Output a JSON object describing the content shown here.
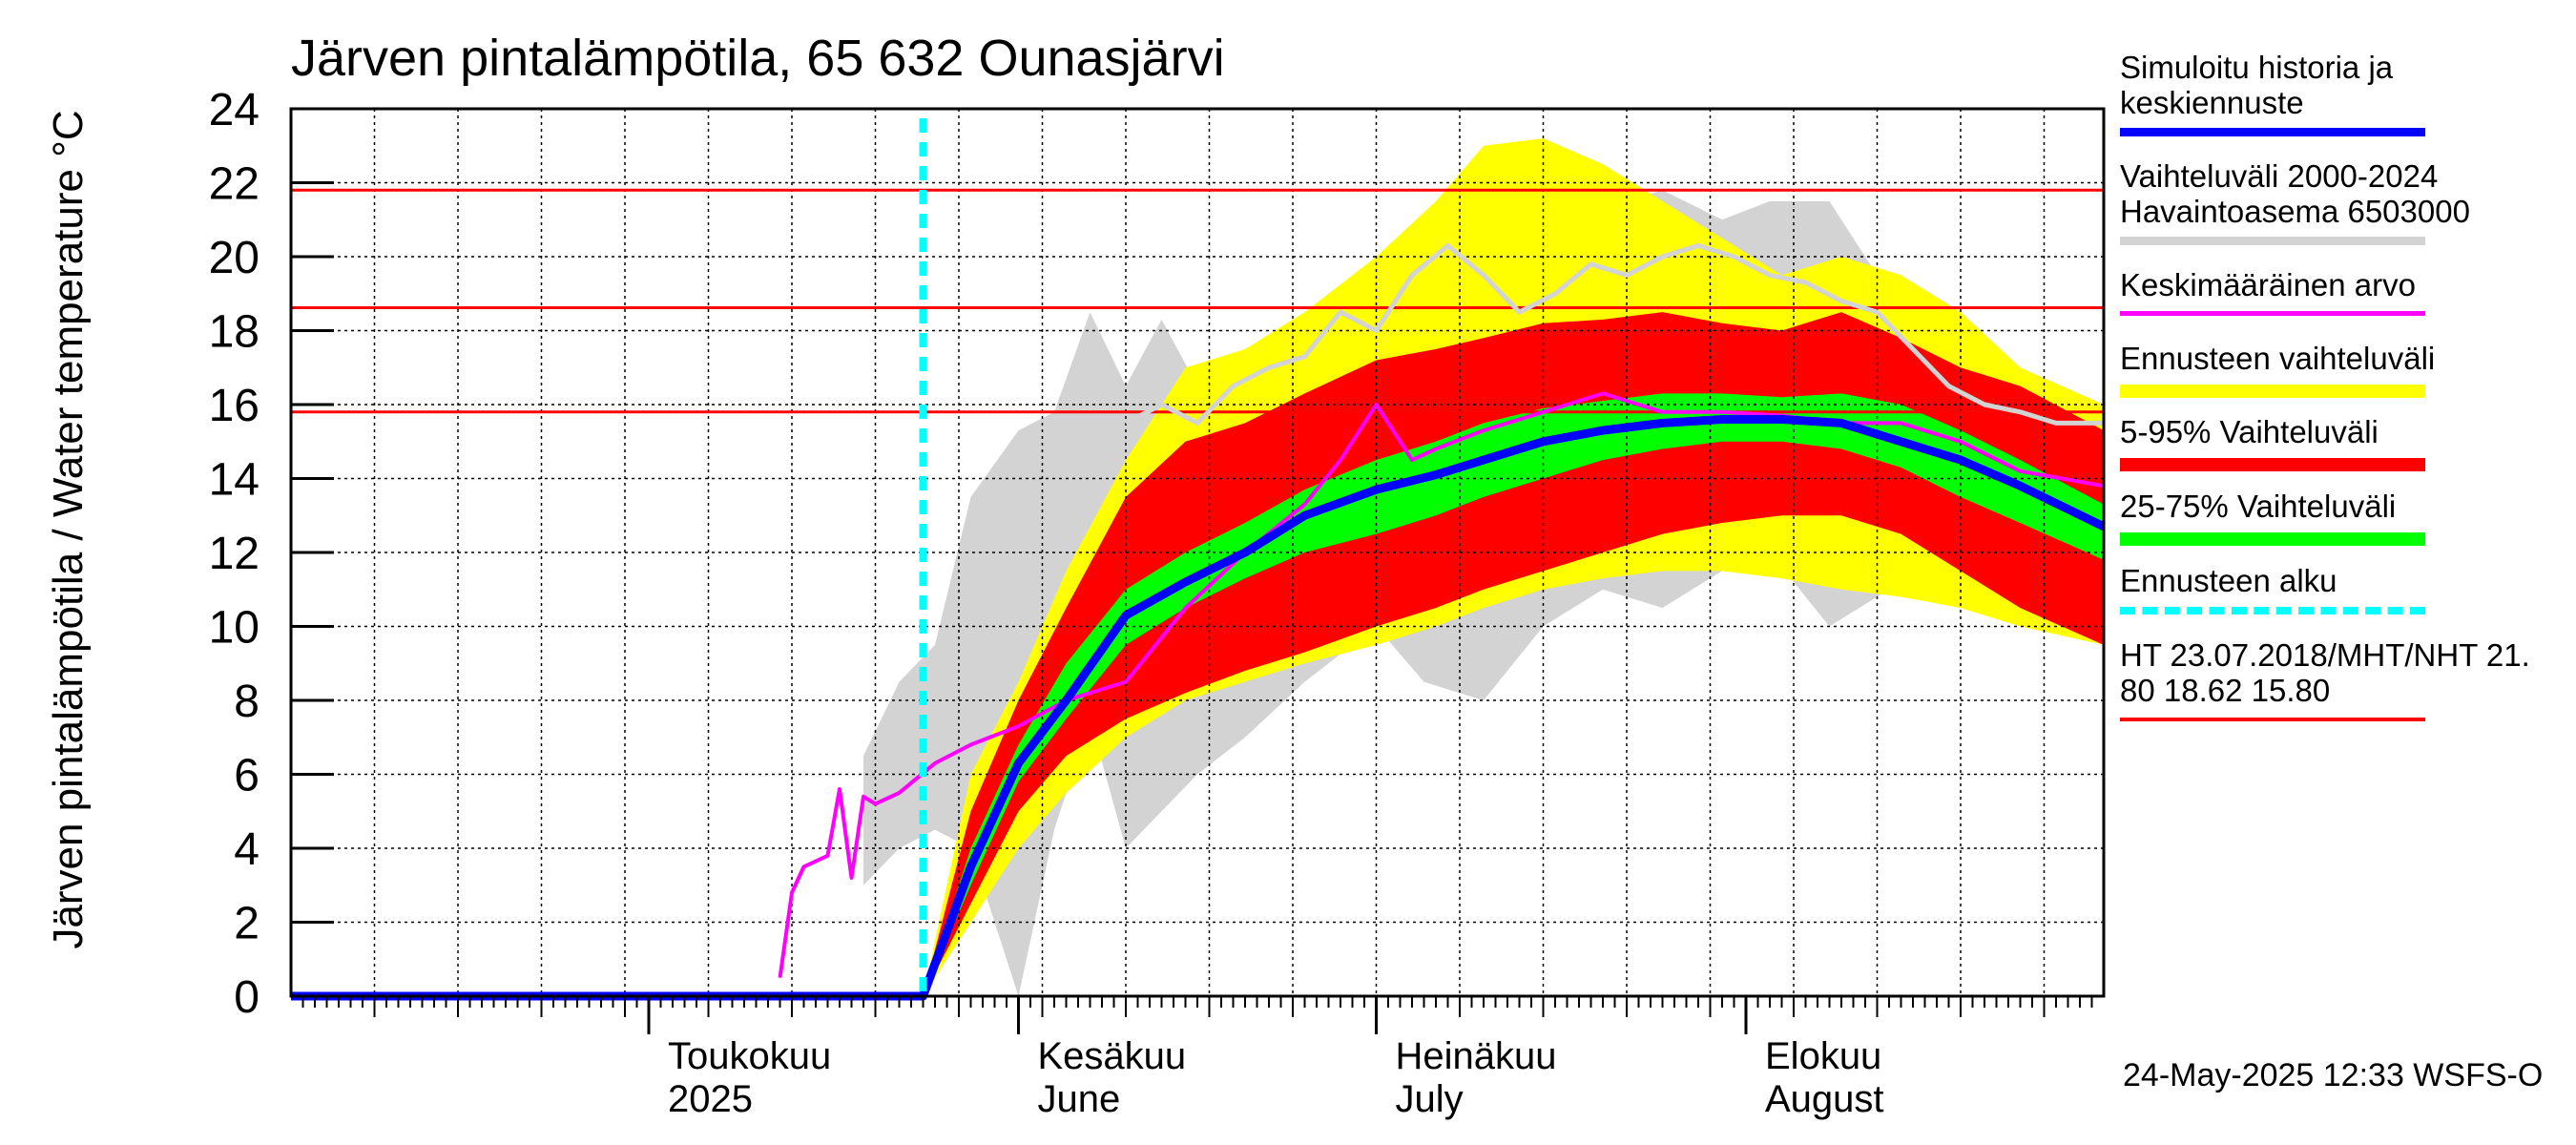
{
  "title": "Järven pintalämpötila, 65 632 Ounasjärvi",
  "y_axis_label": "Järven pintalämpötila / Water temperature °C",
  "footer": "24-May-2025 12:33 WSFS-O",
  "colors": {
    "background": "#ffffff",
    "grid": "#000000",
    "simulated": "#0000ff",
    "history_range": "#d3d3d3",
    "history_obs": "#d3d3d3",
    "mean": "#ff00ff",
    "forecast_range": "#ffff00",
    "p5_95": "#ff0000",
    "p25_75": "#00ff00",
    "forecast_start": "#00ffff",
    "reference_lines": "#ff0000"
  },
  "legend": [
    {
      "label": "Simuloitu historia ja\nkeskiennuste",
      "color": "#0000ff",
      "style": "solid"
    },
    {
      "label": "Vaihteluväli 2000-2024\n Havaintoasema 6503000",
      "color": "#d3d3d3",
      "style": "solid"
    },
    {
      "label": "Keskimääräinen arvo",
      "color": "#ff00ff",
      "style": "solid"
    },
    {
      "label": "Ennusteen vaihteluväli",
      "color": "#ffff00",
      "style": "solid"
    },
    {
      "label": "5-95% Vaihteluväli",
      "color": "#ff0000",
      "style": "solid"
    },
    {
      "label": "25-75% Vaihteluväli",
      "color": "#00ff00",
      "style": "solid"
    },
    {
      "label": "Ennusteen alku",
      "color": "#00ffff",
      "style": "dashed"
    },
    {
      "label": "HT 23.07.2018/MHT/NHT 21.\n80 18.62 15.80",
      "color": "#ff0000",
      "style": "solid"
    }
  ],
  "chart_data": {
    "type": "area",
    "x_start": "2025-04-01",
    "x_end": "2025-08-31",
    "ylim": [
      0,
      24
    ],
    "grid": true,
    "legend_position": "right",
    "y_ticks": [
      0,
      2,
      4,
      6,
      8,
      10,
      12,
      14,
      16,
      18,
      20,
      22,
      24
    ],
    "month_labels": [
      {
        "fi": "Toukokuu",
        "en": "2025",
        "date": "2025-05-01"
      },
      {
        "fi": "Kesäkuu",
        "en": "June",
        "date": "2025-06-01"
      },
      {
        "fi": "Heinäkuu",
        "en": "July",
        "date": "2025-07-01"
      },
      {
        "fi": "Elokuu",
        "en": "August",
        "date": "2025-08-01"
      }
    ],
    "forecast_start": "2025-05-24",
    "reference_lines": [
      {
        "name": "HT",
        "value": 21.8
      },
      {
        "name": "MHT",
        "value": 18.62
      },
      {
        "name": "NHT",
        "value": 15.8
      }
    ],
    "history_range": {
      "name": "Vaihteluväli 2000-2024",
      "dates": [
        "2025-05-19",
        "2025-05-22",
        "2025-05-25",
        "2025-05-28",
        "2025-06-01",
        "2025-06-04",
        "2025-06-07",
        "2025-06-10",
        "2025-06-13",
        "2025-06-16",
        "2025-06-20",
        "2025-06-25",
        "2025-07-01",
        "2025-07-05",
        "2025-07-10",
        "2025-07-15",
        "2025-07-20",
        "2025-07-25",
        "2025-07-30",
        "2025-08-03",
        "2025-08-08",
        "2025-08-13",
        "2025-08-18",
        "2025-08-24",
        "2025-08-31"
      ],
      "upper": [
        6.5,
        8.5,
        9.5,
        13.5,
        15.3,
        15.8,
        18.5,
        16.5,
        18.3,
        16.5,
        16.0,
        17.5,
        18.5,
        19.5,
        20.5,
        20.8,
        21.3,
        21.8,
        21.0,
        21.5,
        21.5,
        19.0,
        18.5,
        16.5,
        15.8
      ],
      "lower": [
        3.0,
        4.0,
        4.5,
        4.0,
        0.0,
        4.5,
        7.5,
        4.0,
        5.0,
        6.0,
        7.0,
        8.5,
        10.0,
        8.5,
        8.0,
        10.0,
        11.0,
        10.5,
        11.5,
        12.0,
        10.0,
        11.0,
        11.5,
        11.0,
        10.5
      ]
    },
    "history_observed": {
      "name": "Havaintoasema 6503000",
      "dates": [
        "2025-06-10",
        "2025-06-13",
        "2025-06-16",
        "2025-06-19",
        "2025-06-22",
        "2025-06-25",
        "2025-06-28",
        "2025-07-01",
        "2025-07-04",
        "2025-07-07",
        "2025-07-10",
        "2025-07-13",
        "2025-07-16",
        "2025-07-19",
        "2025-07-22",
        "2025-07-25",
        "2025-07-28",
        "2025-07-31",
        "2025-08-03",
        "2025-08-06",
        "2025-08-09",
        "2025-08-12",
        "2025-08-15",
        "2025-08-18",
        "2025-08-21",
        "2025-08-24",
        "2025-08-27",
        "2025-08-31"
      ],
      "values": [
        15.5,
        16.0,
        15.5,
        16.5,
        17.0,
        17.3,
        18.5,
        18.0,
        19.5,
        20.3,
        19.5,
        18.5,
        19.0,
        19.8,
        19.5,
        20.0,
        20.3,
        20.0,
        19.5,
        19.3,
        18.8,
        18.5,
        17.5,
        16.5,
        16.0,
        15.8,
        15.5,
        15.5
      ]
    },
    "forecast_range": {
      "name": "Ennusteen vaihteluväli",
      "dates": [
        "2025-05-24",
        "2025-05-28",
        "2025-06-01",
        "2025-06-05",
        "2025-06-10",
        "2025-06-15",
        "2025-06-20",
        "2025-06-25",
        "2025-07-01",
        "2025-07-06",
        "2025-07-10",
        "2025-07-15",
        "2025-07-20",
        "2025-07-25",
        "2025-07-30",
        "2025-08-04",
        "2025-08-09",
        "2025-08-14",
        "2025-08-19",
        "2025-08-24",
        "2025-08-31"
      ],
      "upper": [
        0.0,
        6.0,
        8.5,
        11.5,
        14.5,
        17.0,
        17.5,
        18.5,
        20.0,
        21.5,
        23.0,
        23.2,
        22.5,
        21.5,
        20.5,
        19.5,
        20.0,
        19.5,
        18.5,
        17.0,
        16.0
      ],
      "lower": [
        0.0,
        2.0,
        4.0,
        5.5,
        7.0,
        8.0,
        8.5,
        9.0,
        9.5,
        10.0,
        10.5,
        11.0,
        11.3,
        11.5,
        11.5,
        11.3,
        11.0,
        10.8,
        10.5,
        10.0,
        9.5
      ]
    },
    "p5_95": {
      "name": "5-95% Vaihteluväli",
      "dates": [
        "2025-05-24",
        "2025-05-28",
        "2025-06-01",
        "2025-06-05",
        "2025-06-10",
        "2025-06-15",
        "2025-06-20",
        "2025-06-25",
        "2025-07-01",
        "2025-07-06",
        "2025-07-10",
        "2025-07-15",
        "2025-07-20",
        "2025-07-25",
        "2025-07-30",
        "2025-08-04",
        "2025-08-09",
        "2025-08-14",
        "2025-08-19",
        "2025-08-24",
        "2025-08-31"
      ],
      "upper": [
        0.0,
        5.0,
        8.0,
        10.5,
        13.5,
        15.0,
        15.5,
        16.3,
        17.2,
        17.5,
        17.8,
        18.2,
        18.3,
        18.5,
        18.2,
        18.0,
        18.5,
        17.8,
        17.0,
        16.5,
        15.3
      ],
      "lower": [
        0.0,
        2.5,
        5.0,
        6.5,
        7.5,
        8.2,
        8.8,
        9.3,
        10.0,
        10.5,
        11.0,
        11.5,
        12.0,
        12.5,
        12.8,
        13.0,
        13.0,
        12.5,
        11.5,
        10.5,
        9.5
      ]
    },
    "p25_75": {
      "name": "25-75% Vaihteluväli",
      "dates": [
        "2025-05-24",
        "2025-05-28",
        "2025-06-01",
        "2025-06-05",
        "2025-06-10",
        "2025-06-15",
        "2025-06-20",
        "2025-06-25",
        "2025-07-01",
        "2025-07-06",
        "2025-07-10",
        "2025-07-15",
        "2025-07-20",
        "2025-07-25",
        "2025-07-30",
        "2025-08-04",
        "2025-08-09",
        "2025-08-14",
        "2025-08-19",
        "2025-08-24",
        "2025-08-31"
      ],
      "upper": [
        0.0,
        4.0,
        6.8,
        9.0,
        11.0,
        12.0,
        12.8,
        13.7,
        14.5,
        15.0,
        15.5,
        15.9,
        16.1,
        16.3,
        16.3,
        16.2,
        16.3,
        16.0,
        15.3,
        14.5,
        13.3
      ],
      "lower": [
        0.0,
        3.0,
        5.8,
        7.5,
        9.5,
        10.5,
        11.3,
        12.0,
        12.5,
        13.0,
        13.5,
        14.0,
        14.5,
        14.8,
        15.0,
        15.0,
        14.8,
        14.3,
        13.5,
        12.8,
        11.8
      ]
    },
    "simulated": {
      "name": "Simuloitu historia ja keskiennuste",
      "dates": [
        "2025-04-01",
        "2025-05-24",
        "2025-05-28",
        "2025-06-01",
        "2025-06-05",
        "2025-06-10",
        "2025-06-15",
        "2025-06-20",
        "2025-06-25",
        "2025-07-01",
        "2025-07-06",
        "2025-07-10",
        "2025-07-15",
        "2025-07-20",
        "2025-07-25",
        "2025-07-30",
        "2025-08-04",
        "2025-08-09",
        "2025-08-14",
        "2025-08-19",
        "2025-08-24",
        "2025-08-31"
      ],
      "values": [
        0.0,
        0.0,
        3.5,
        6.3,
        8.0,
        10.3,
        11.2,
        12.0,
        13.0,
        13.7,
        14.1,
        14.5,
        15.0,
        15.3,
        15.5,
        15.6,
        15.6,
        15.5,
        15.0,
        14.5,
        13.8,
        12.7
      ]
    },
    "mean": {
      "name": "Keskimääräinen arvo",
      "dates": [
        "2025-05-12",
        "2025-05-13",
        "2025-05-14",
        "2025-05-16",
        "2025-05-17",
        "2025-05-18",
        "2025-05-19",
        "2025-05-20",
        "2025-05-22",
        "2025-05-25",
        "2025-05-28",
        "2025-06-01",
        "2025-06-05",
        "2025-06-10",
        "2025-06-15",
        "2025-06-20",
        "2025-06-25",
        "2025-06-28",
        "2025-07-01",
        "2025-07-04",
        "2025-07-06",
        "2025-07-10",
        "2025-07-15",
        "2025-07-20",
        "2025-07-25",
        "2025-07-30",
        "2025-08-04",
        "2025-08-09",
        "2025-08-14",
        "2025-08-19",
        "2025-08-24",
        "2025-08-31"
      ],
      "values": [
        0.5,
        2.8,
        3.5,
        3.8,
        5.6,
        3.2,
        5.4,
        5.2,
        5.5,
        6.3,
        6.8,
        7.3,
        8.0,
        8.5,
        10.5,
        12.0,
        13.3,
        14.5,
        16.0,
        14.5,
        14.8,
        15.3,
        15.8,
        16.3,
        15.8,
        15.8,
        15.7,
        15.5,
        15.5,
        15.0,
        14.2,
        13.8
      ]
    }
  }
}
